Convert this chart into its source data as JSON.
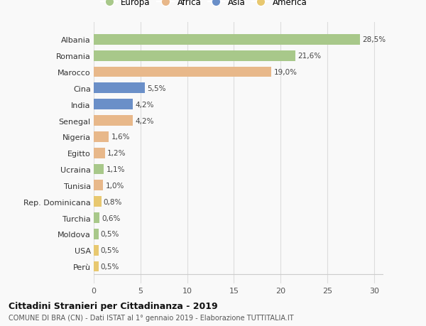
{
  "countries": [
    "Albania",
    "Romania",
    "Marocco",
    "Cina",
    "India",
    "Senegal",
    "Nigeria",
    "Egitto",
    "Ucraina",
    "Tunisia",
    "Rep. Dominicana",
    "Turchia",
    "Moldova",
    "USA",
    "Perù"
  ],
  "values": [
    28.5,
    21.6,
    19.0,
    5.5,
    4.2,
    4.2,
    1.6,
    1.2,
    1.1,
    1.0,
    0.8,
    0.6,
    0.5,
    0.5,
    0.5
  ],
  "labels": [
    "28,5%",
    "21,6%",
    "19,0%",
    "5,5%",
    "4,2%",
    "4,2%",
    "1,6%",
    "1,2%",
    "1,1%",
    "1,0%",
    "0,8%",
    "0,6%",
    "0,5%",
    "0,5%",
    "0,5%"
  ],
  "categories": [
    "Europa",
    "Europa",
    "Africa",
    "Asia",
    "Asia",
    "Africa",
    "Africa",
    "Africa",
    "Europa",
    "Africa",
    "America",
    "Europa",
    "Europa",
    "America",
    "America"
  ],
  "category_colors": {
    "Europa": "#a8c88a",
    "Africa": "#e8b88a",
    "Asia": "#6a8fc8",
    "America": "#e8c870"
  },
  "legend_order": [
    "Europa",
    "Africa",
    "Asia",
    "America"
  ],
  "xlim": [
    0,
    31
  ],
  "xticks": [
    0,
    5,
    10,
    15,
    20,
    25,
    30
  ],
  "title": "Cittadini Stranieri per Cittadinanza - 2019",
  "subtitle": "COMUNE DI BRA (CN) - Dati ISTAT al 1° gennaio 2019 - Elaborazione TUTTITALIA.IT",
  "background_color": "#f9f9f9",
  "grid_color": "#dddddd",
  "bar_height": 0.65
}
